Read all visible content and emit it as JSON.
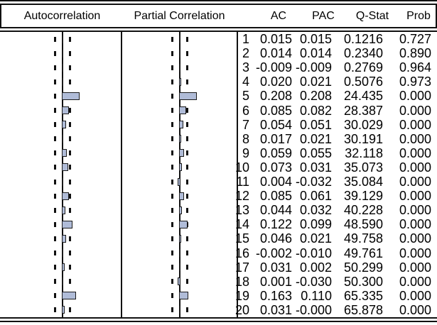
{
  "header": {
    "autocorrelation": "Autocorrelation",
    "partial_correlation": "Partial Correlation",
    "ac": "AC",
    "pac": "PAC",
    "q_stat": "Q-Stat",
    "prob": "Prob"
  },
  "colors": {
    "bar_fill": "#b0bcd8",
    "bar_border": "#1a1a1a",
    "line": "#111111"
  },
  "chart_data": {
    "type": "bar",
    "subtype": "correlogram",
    "orientation": "horizontal",
    "columns": [
      "Autocorrelation",
      "Partial Correlation",
      "AC",
      "PAC",
      "Q-Stat",
      "Prob"
    ],
    "lags": [
      1,
      2,
      3,
      4,
      5,
      6,
      7,
      8,
      9,
      10,
      11,
      12,
      13,
      14,
      15,
      16,
      17,
      18,
      19,
      20
    ],
    "series": [
      {
        "name": "AC",
        "values": [
          "0.015",
          "0.014",
          "-0.009",
          "0.020",
          "0.208",
          "0.085",
          "0.054",
          "0.017",
          "0.059",
          "0.073",
          "0.004",
          "0.085",
          "0.044",
          "0.122",
          "0.046",
          "-0.002",
          "0.031",
          "0.001",
          "0.163",
          "0.031"
        ]
      },
      {
        "name": "PAC",
        "values": [
          "0.015",
          "0.014",
          "-0.009",
          "0.021",
          "0.208",
          "0.082",
          "0.051",
          "0.021",
          "0.055",
          "0.031",
          "-0.032",
          "0.061",
          "0.032",
          "0.099",
          "0.021",
          "-0.010",
          "0.002",
          "-0.030",
          "0.110",
          "-0.000"
        ]
      }
    ],
    "q_stat": [
      "0.1216",
      "0.2340",
      "0.2769",
      "0.5076",
      "24.435",
      "28.387",
      "30.029",
      "30.191",
      "32.118",
      "35.073",
      "35.084",
      "39.129",
      "40.228",
      "48.590",
      "49.758",
      "49.761",
      "50.299",
      "50.300",
      "65.335",
      "65.878"
    ],
    "prob": [
      "0.727",
      "0.890",
      "0.964",
      "0.973",
      "0.000",
      "0.000",
      "0.000",
      "0.000",
      "0.000",
      "0.000",
      "0.000",
      "0.000",
      "0.000",
      "0.000",
      "0.000",
      "0.000",
      "0.000",
      "0.000",
      "0.000",
      "0.000"
    ],
    "confidence_band": 0.09,
    "xlim": [
      -0.35,
      0.35
    ],
    "grid": false,
    "legend": false
  }
}
